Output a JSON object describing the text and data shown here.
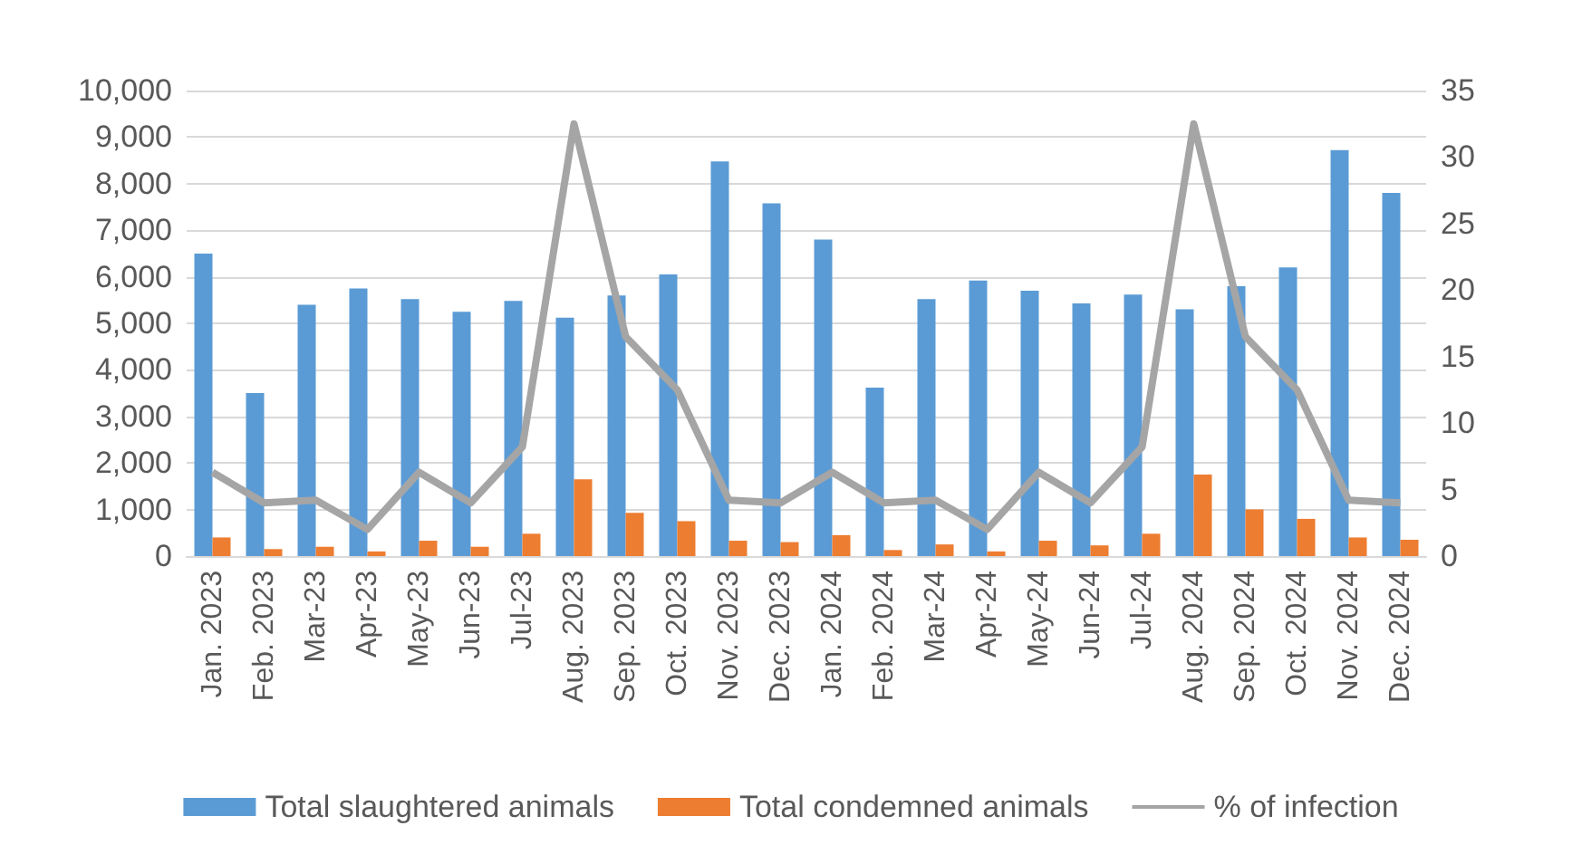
{
  "chart_data": {
    "type": "bar",
    "categories": [
      "Jan. 2023",
      "Feb. 2023",
      "Mar-23",
      "Apr-23",
      "May-23",
      "Jun-23",
      "Jul-23",
      "Aug. 2023",
      "Sep. 2023",
      "Oct. 2023",
      "Nov. 2023",
      "Dec. 2023",
      "Jan. 2024",
      "Feb. 2024",
      "Mar-24",
      "Apr-24",
      "May-24",
      "Jun-24",
      "Jul-24",
      "Aug. 2024",
      "Sep. 2024",
      "Oct. 2024",
      "Nov. 2024",
      "Dec. 2024"
    ],
    "series": [
      {
        "name": "Total slaughtered animals",
        "color": "#5b9bd5",
        "values": [
          6500,
          3500,
          5400,
          5750,
          5520,
          5250,
          5480,
          5120,
          5600,
          6050,
          8480,
          7580,
          6800,
          3620,
          5520,
          5920,
          5700,
          5430,
          5620,
          5300,
          5800,
          6200,
          8720,
          7800
        ]
      },
      {
        "name": "Total condemned animals",
        "color": "#ed7d31",
        "values": [
          400,
          150,
          200,
          100,
          330,
          200,
          480,
          1650,
          930,
          750,
          330,
          300,
          450,
          130,
          250,
          100,
          330,
          230,
          480,
          1750,
          1000,
          800,
          400,
          350
        ]
      },
      {
        "name": "% of infection",
        "type": "line",
        "axis": "y2",
        "color": "#a5a5a5",
        "values": [
          6.3,
          4,
          4.2,
          2,
          6.3,
          4,
          8.2,
          32.5,
          16.5,
          12.5,
          4.2,
          4,
          6.3,
          4,
          4.2,
          2,
          6.3,
          4,
          8.2,
          32.5,
          16.5,
          12.5,
          4.2,
          4
        ]
      }
    ],
    "ylim": [
      0,
      10000
    ],
    "yticks": [
      0,
      {
        "value": 1000,
        "label": "1,000"
      },
      {
        "value": 2000,
        "label": "2,000"
      },
      {
        "value": 3000,
        "label": "3,000"
      },
      {
        "value": 4000,
        "label": "4,000"
      },
      {
        "value": 5000,
        "label": "5,000"
      },
      {
        "value": 6000,
        "label": "6,000"
      },
      {
        "value": 7000,
        "label": "7,000"
      },
      {
        "value": 8000,
        "label": "8,000"
      },
      {
        "value": 9000,
        "label": "9,000"
      },
      {
        "value": 10000,
        "label": "10,000"
      }
    ],
    "y2lim": [
      0,
      35
    ],
    "y2ticks": [
      0,
      5,
      10,
      15,
      20,
      25,
      30,
      35
    ],
    "grid": "y",
    "legend": "bottom",
    "marker": "none",
    "line_style": "solid"
  }
}
